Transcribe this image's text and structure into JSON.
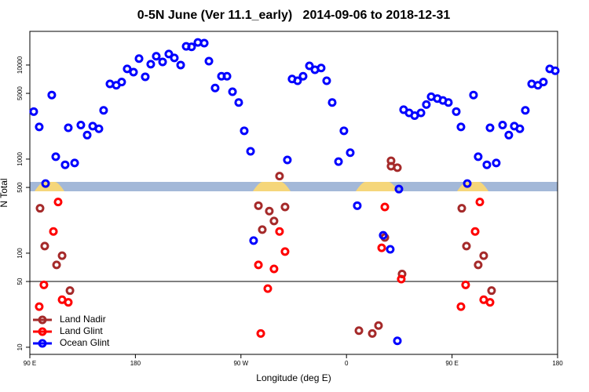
{
  "chart_data": {
    "type": "scatter",
    "title": "0-5N June (Ver 11.1_early)   2014-09-06 to 2018-12-31",
    "x_label": "Longitude (deg E)",
    "y_label": "N Total",
    "log_y": true,
    "xlim": [
      90,
      540
    ],
    "ylim": [
      8.4,
      22800
    ],
    "xticks": [
      {
        "value": 90,
        "label": "90 E"
      },
      180,
      {
        "value": 270,
        "label": "90 W"
      },
      {
        "value": 360,
        "label": "0"
      },
      {
        "value": 450,
        "label": "90 E"
      },
      {
        "value": 540,
        "label": "180"
      }
    ],
    "yticks": [
      10,
      50,
      100,
      500,
      1000,
      5000,
      10000
    ],
    "hlines": [
      50
    ],
    "legend": "lower left",
    "series": [
      {
        "name": "Land Nadir",
        "color": "#a52a2a",
        "x": [
          98.7,
          102.7,
          112.8,
          117.5,
          124.2,
          284.9,
          288.2,
          294.2,
          298.2,
          302.9,
          307.6,
          370.6,
          382.0,
          387.3,
          392.7,
          398.0,
          398.0,
          403.4,
          407.4,
          458.3,
          462.3,
          472.3,
          477.0,
          483.7
        ],
        "values": [
          300,
          119,
          75,
          94,
          40,
          320,
          178,
          280,
          220,
          660,
          310,
          15,
          14,
          17,
          147,
          960,
          840,
          810,
          60,
          300,
          119,
          75,
          94,
          40
        ]
      },
      {
        "name": "Land Glint",
        "color": "#ff0000",
        "x": [
          98.0,
          102.0,
          110.1,
          114.1,
          117.5,
          122.8,
          284.9,
          286.9,
          292.9,
          298.2,
          302.9,
          307.6,
          390.0,
          392.7,
          406.7,
          457.6,
          461.6,
          469.7,
          473.7,
          477.0,
          482.4
        ],
        "values": [
          27,
          46,
          170,
          350,
          32,
          30,
          75,
          14,
          42,
          68,
          170,
          104,
          114,
          310,
          53,
          27,
          46,
          170,
          350,
          32,
          30
        ]
      },
      {
        "name": "Ocean Glint",
        "color": "#0000ff",
        "x": [
          93.3,
          98.0,
          103.4,
          108.7,
          112.1,
          120.1,
          122.8,
          128.2,
          133.5,
          138.9,
          143.6,
          148.9,
          152.9,
          158.3,
          163.7,
          168.3,
          173.0,
          178.4,
          183.1,
          188.4,
          193.1,
          197.8,
          203.2,
          208.5,
          213.2,
          218.6,
          223.3,
          227.9,
          233.3,
          238.7,
          242.7,
          248.0,
          253.4,
          258.1,
          262.8,
          268.1,
          272.8,
          278.2,
          280.8,
          309.6,
          313.6,
          318.3,
          323.0,
          328.4,
          333.1,
          338.4,
          343.1,
          347.8,
          353.2,
          357.8,
          363.2,
          369.2,
          391.3,
          397.3,
          403.4,
          404.7,
          408.7,
          413.4,
          418.1,
          423.5,
          428.1,
          432.2,
          437.5,
          442.2,
          446.9,
          453.6,
          457.6,
          463.0,
          468.3,
          472.3,
          479.7,
          482.4,
          487.7,
          493.1,
          498.4,
          503.1,
          507.8,
          512.5,
          517.9,
          523.2,
          527.9,
          533.3,
          538.0
        ],
        "values": [
          3200,
          2200,
          550,
          4800,
          1060,
          870,
          2150,
          910,
          2300,
          1800,
          2240,
          2100,
          3300,
          6300,
          6100,
          6600,
          9100,
          8400,
          11700,
          7500,
          10200,
          12400,
          10800,
          13100,
          11900,
          10000,
          15800,
          15600,
          17400,
          17100,
          11000,
          5700,
          7600,
          7600,
          5200,
          4000,
          2000,
          1210,
          136,
          980,
          7100,
          6800,
          7600,
          9800,
          8900,
          9300,
          6800,
          4000,
          940,
          2000,
          1170,
          320,
          155,
          110,
          11.7,
          480,
          3350,
          3100,
          2900,
          3100,
          3800,
          4600,
          4400,
          4200,
          4000,
          3200,
          2200,
          550,
          4800,
          1060,
          870,
          2150,
          910,
          2300,
          1800,
          2240,
          2100,
          3300,
          6300,
          6100,
          6600,
          9100,
          8700
        ]
      }
    ]
  }
}
